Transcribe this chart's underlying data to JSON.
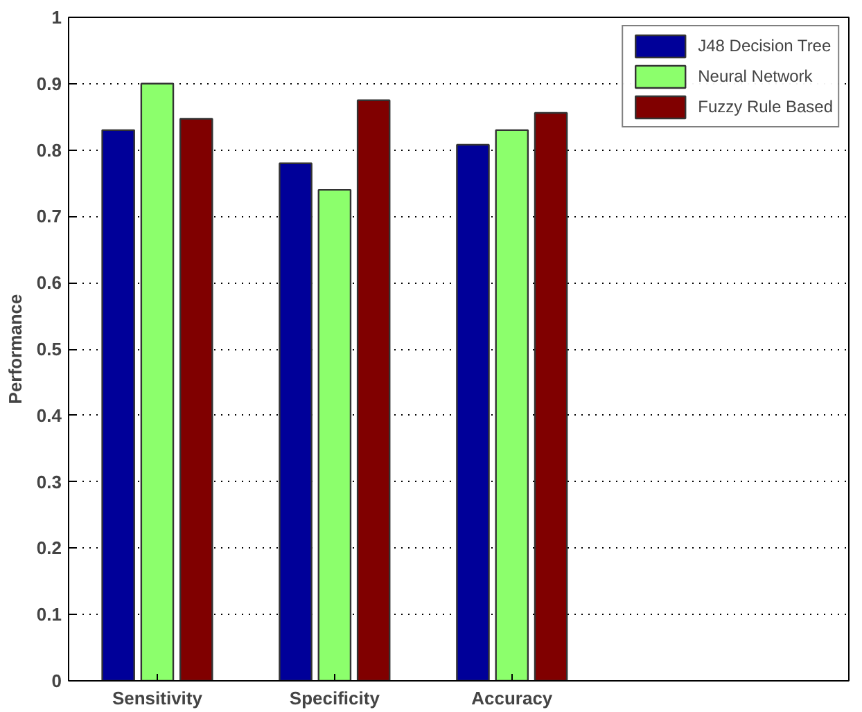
{
  "chart_data": {
    "type": "bar",
    "ylabel": "Performance",
    "categories": [
      "Sensitivity",
      "Specificity",
      "Accuracy"
    ],
    "series": [
      {
        "name": "J48 Decision Tree",
        "color": "#000099",
        "values": [
          0.83,
          0.78,
          0.808
        ]
      },
      {
        "name": "Neural Network",
        "color": "#8cff6c",
        "values": [
          0.9,
          0.74,
          0.83
        ]
      },
      {
        "name": "Fuzzy Rule Based",
        "color": "#800000",
        "values": [
          0.847,
          0.875,
          0.856
        ]
      }
    ],
    "ylim": [
      0,
      1
    ],
    "yticks": [
      0,
      0.1,
      0.2,
      0.3,
      0.4,
      0.5,
      0.6,
      0.7,
      0.8,
      0.9,
      1
    ],
    "grid": "y",
    "legend": "top right"
  }
}
